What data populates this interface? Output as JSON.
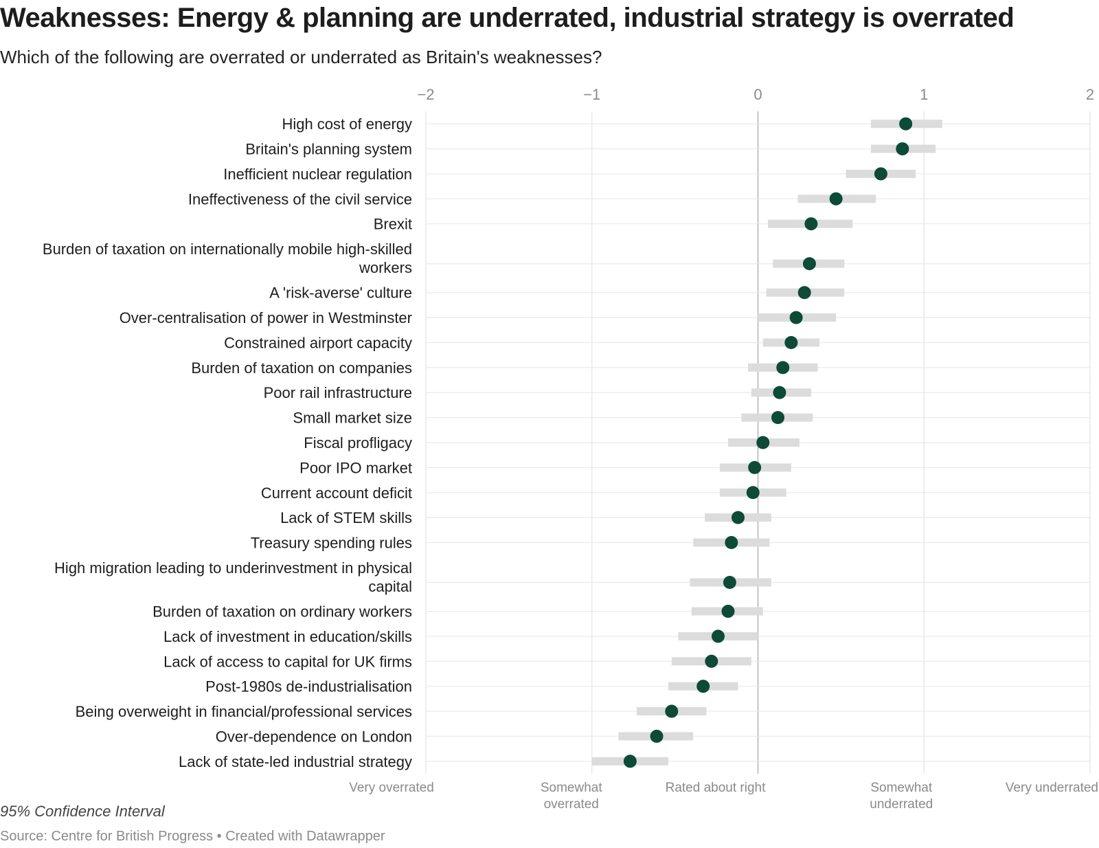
{
  "chart_data": {
    "type": "dot",
    "title": "Weaknesses: Energy & planning are underrated, industrial strategy is overrated",
    "subtitle": "Which of the following are overrated or underrated as Britain's weaknesses?",
    "xlim": [
      -2,
      2
    ],
    "x_ticks": [
      "−2",
      "−1",
      "0",
      "1",
      "2"
    ],
    "x_tick_values": [
      -2,
      -1,
      0,
      1,
      2
    ],
    "x_category_labels": [
      {
        "value": -2,
        "lines": [
          "Very overrated"
        ]
      },
      {
        "value": -1,
        "lines": [
          "Somewhat",
          "overrated"
        ]
      },
      {
        "value": 0,
        "lines": [
          "Rated about right"
        ]
      },
      {
        "value": 1,
        "lines": [
          "Somewhat",
          "underrated"
        ]
      },
      {
        "value": 2,
        "lines": [
          "Very underrated"
        ]
      }
    ],
    "grid": true,
    "point_color": "#0d4a37",
    "ci_color": "#dcdcdc",
    "items": [
      {
        "label": [
          "High cost of energy"
        ],
        "value": 0.89,
        "ci": [
          0.68,
          1.11
        ]
      },
      {
        "label": [
          "Britain's planning system"
        ],
        "value": 0.87,
        "ci": [
          0.68,
          1.07
        ]
      },
      {
        "label": [
          "Inefficient nuclear regulation"
        ],
        "value": 0.74,
        "ci": [
          0.53,
          0.95
        ]
      },
      {
        "label": [
          "Ineffectiveness of the civil service"
        ],
        "value": 0.47,
        "ci": [
          0.24,
          0.71
        ]
      },
      {
        "label": [
          "Brexit"
        ],
        "value": 0.32,
        "ci": [
          0.06,
          0.57
        ]
      },
      {
        "label": [
          "Burden of taxation on internationally mobile high-skilled",
          "workers"
        ],
        "value": 0.31,
        "ci": [
          0.09,
          0.52
        ]
      },
      {
        "label": [
          "A 'risk-averse' culture"
        ],
        "value": 0.28,
        "ci": [
          0.05,
          0.52
        ]
      },
      {
        "label": [
          "Over-centralisation of power in Westminster"
        ],
        "value": 0.23,
        "ci": [
          0.0,
          0.47
        ]
      },
      {
        "label": [
          "Constrained airport capacity"
        ],
        "value": 0.2,
        "ci": [
          0.03,
          0.37
        ]
      },
      {
        "label": [
          "Burden of taxation on companies"
        ],
        "value": 0.15,
        "ci": [
          -0.06,
          0.36
        ]
      },
      {
        "label": [
          "Poor rail infrastructure"
        ],
        "value": 0.13,
        "ci": [
          -0.04,
          0.32
        ]
      },
      {
        "label": [
          "Small market size"
        ],
        "value": 0.12,
        "ci": [
          -0.1,
          0.33
        ]
      },
      {
        "label": [
          "Fiscal profligacy"
        ],
        "value": 0.03,
        "ci": [
          -0.18,
          0.25
        ]
      },
      {
        "label": [
          "Poor IPO market"
        ],
        "value": -0.02,
        "ci": [
          -0.23,
          0.2
        ]
      },
      {
        "label": [
          "Current account deficit"
        ],
        "value": -0.03,
        "ci": [
          -0.23,
          0.17
        ]
      },
      {
        "label": [
          "Lack of STEM skills"
        ],
        "value": -0.12,
        "ci": [
          -0.32,
          0.08
        ]
      },
      {
        "label": [
          "Treasury spending rules"
        ],
        "value": -0.16,
        "ci": [
          -0.39,
          0.07
        ]
      },
      {
        "label": [
          "High migration leading to underinvestment in physical",
          "capital"
        ],
        "value": -0.17,
        "ci": [
          -0.41,
          0.08
        ]
      },
      {
        "label": [
          "Burden of taxation on ordinary workers"
        ],
        "value": -0.18,
        "ci": [
          -0.4,
          0.03
        ]
      },
      {
        "label": [
          "Lack of investment in education/skills"
        ],
        "value": -0.24,
        "ci": [
          -0.48,
          0.0
        ]
      },
      {
        "label": [
          "Lack of access to capital for UK firms"
        ],
        "value": -0.28,
        "ci": [
          -0.52,
          -0.04
        ]
      },
      {
        "label": [
          "Post-1980s de-industrialisation"
        ],
        "value": -0.33,
        "ci": [
          -0.54,
          -0.12
        ]
      },
      {
        "label": [
          "Being overweight in financial/professional services"
        ],
        "value": -0.52,
        "ci": [
          -0.73,
          -0.31
        ]
      },
      {
        "label": [
          "Over-dependence on London"
        ],
        "value": -0.61,
        "ci": [
          -0.84,
          -0.39
        ]
      },
      {
        "label": [
          "Lack of state-led industrial strategy"
        ],
        "value": -0.77,
        "ci": [
          -1.0,
          -0.54
        ]
      }
    ]
  },
  "notes": {
    "ci_note": "95% Confidence Interval",
    "source": "Source: Centre for British Progress • Created with Datawrapper"
  }
}
